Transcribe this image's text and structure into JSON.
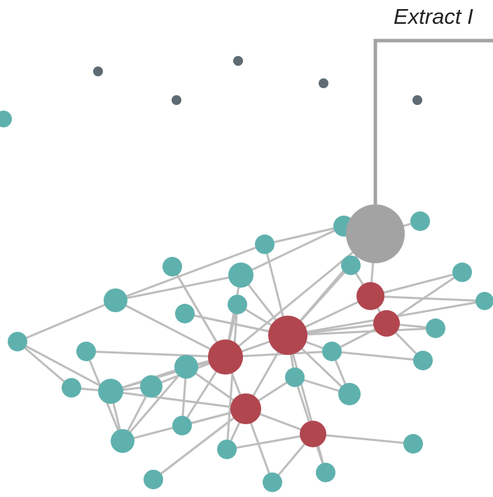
{
  "callout": {
    "label": "Extract I",
    "line_color": "#a3a3a3",
    "target_node": "highlighted-node"
  },
  "palette": {
    "teal": "#5fb1ae",
    "red": "#b1464f",
    "gray": "#a3a3a3",
    "slate": "#5e6b73",
    "edge": "#bdbdbd"
  },
  "graph": {
    "node_kinds": [
      "isolated",
      "neighbor",
      "hub",
      "highlighted"
    ]
  }
}
